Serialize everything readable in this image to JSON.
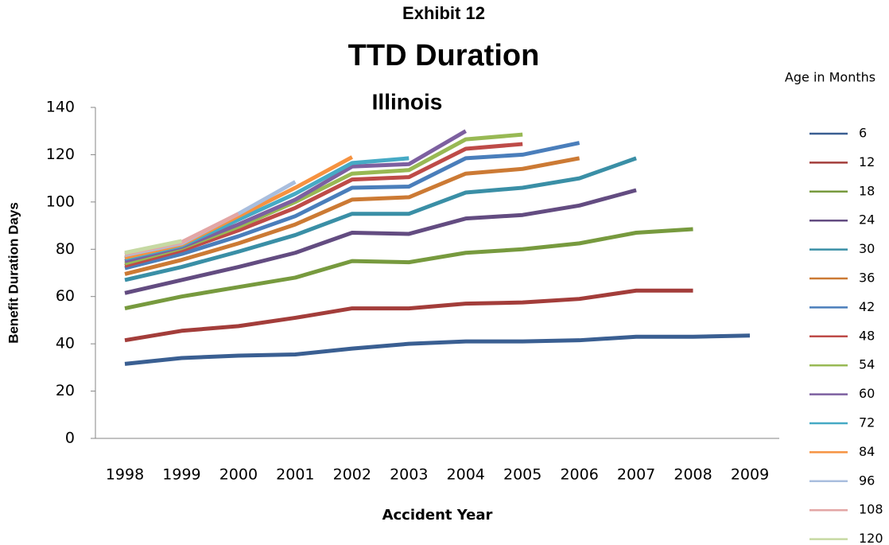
{
  "chart_data": {
    "type": "line",
    "title": "TTD Duration",
    "supertitle": "Exhibit 12",
    "subtitle": "Illinois",
    "y_label": "Benefit Duration Days",
    "x_label": "Accident Year",
    "legend_title": "Age in Months",
    "categories": [
      "1998",
      "1999",
      "2000",
      "2001",
      "2002",
      "2003",
      "2004",
      "2005",
      "2006",
      "2007",
      "2008",
      "2009"
    ],
    "ylim": [
      0,
      140
    ],
    "yticks": [
      0,
      20,
      40,
      60,
      80,
      100,
      120,
      140
    ],
    "grid": false,
    "legend": "right",
    "series": [
      {
        "name": "6",
        "color": "#3A5F92",
        "values": [
          31.5,
          34,
          35,
          35.5,
          38,
          40,
          41,
          41,
          41.5,
          43,
          43,
          43.5
        ]
      },
      {
        "name": "12",
        "color": "#A33D3A",
        "values": [
          41.5,
          45.5,
          47.5,
          51,
          55,
          55,
          57,
          57.5,
          59,
          62.5,
          62.5,
          null
        ]
      },
      {
        "name": "18",
        "color": "#779A3E",
        "values": [
          55,
          60,
          64,
          68,
          75,
          74.5,
          78.5,
          80,
          82.5,
          87,
          88.5,
          null
        ]
      },
      {
        "name": "24",
        "color": "#634C81",
        "values": [
          61.5,
          67,
          72.5,
          78.5,
          87,
          86.5,
          93,
          94.5,
          98.5,
          105,
          null,
          null
        ]
      },
      {
        "name": "30",
        "color": "#3A8FA6",
        "values": [
          67,
          72.5,
          79,
          86,
          95,
          95,
          104,
          106,
          110,
          118.5,
          null,
          null
        ]
      },
      {
        "name": "36",
        "color": "#CC7A34",
        "values": [
          69.5,
          75.5,
          82.5,
          90.5,
          101,
          102,
          112,
          114,
          118.5,
          null,
          null,
          null
        ]
      },
      {
        "name": "42",
        "color": "#4A7EBB",
        "values": [
          72,
          78,
          85.5,
          94,
          106,
          106.5,
          118.5,
          120,
          125,
          null,
          null,
          null
        ]
      },
      {
        "name": "48",
        "color": "#BE4B48",
        "values": [
          73,
          79.5,
          88,
          97.5,
          109.5,
          110.5,
          122.5,
          124.5,
          null,
          null,
          null,
          null
        ]
      },
      {
        "name": "54",
        "color": "#98B954",
        "values": [
          74,
          80.5,
          89.5,
          100,
          112,
          113.5,
          126.5,
          128.5,
          null,
          null,
          null,
          null
        ]
      },
      {
        "name": "60",
        "color": "#7D60A0",
        "values": [
          75,
          81,
          90.5,
          101,
          115,
          116,
          130,
          null,
          null,
          null,
          null,
          null
        ]
      },
      {
        "name": "72",
        "color": "#46AAC5",
        "values": [
          76,
          81.5,
          92.5,
          103.5,
          116.5,
          118.5,
          null,
          null,
          null,
          null,
          null,
          null
        ]
      },
      {
        "name": "84",
        "color": "#F69240",
        "values": [
          76.5,
          82,
          94,
          106,
          119,
          null,
          null,
          null,
          null,
          null,
          null,
          null
        ]
      },
      {
        "name": "96",
        "color": "#A9BEDE",
        "values": [
          77.5,
          82.5,
          95,
          108.5,
          null,
          null,
          null,
          null,
          null,
          null,
          null,
          null
        ]
      },
      {
        "name": "108",
        "color": "#E3A6A5",
        "values": [
          78,
          83,
          95,
          null,
          null,
          null,
          null,
          null,
          null,
          null,
          null,
          null
        ]
      },
      {
        "name": "120",
        "color": "#C6D9A3",
        "values": [
          78.5,
          83.5,
          null,
          null,
          null,
          null,
          null,
          null,
          null,
          null,
          null,
          null
        ]
      }
    ]
  }
}
